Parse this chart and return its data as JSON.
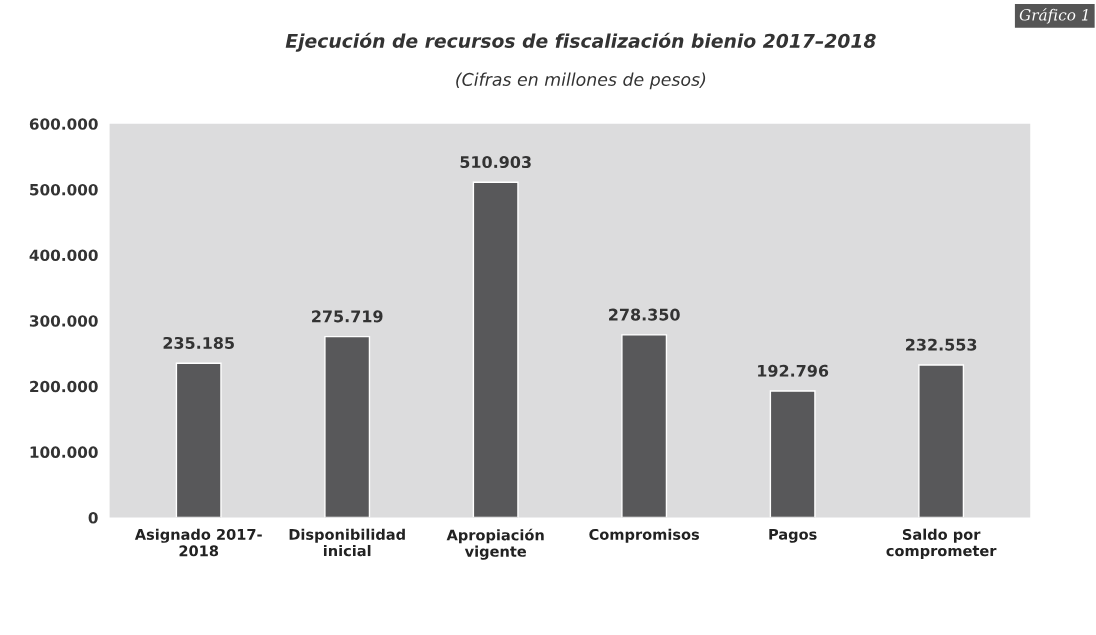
{
  "chart_data": {
    "type": "bar",
    "title": "Ejecución de recursos de fiscalización bienio 2017–2018",
    "subtitle": "(Cifras en millones de pesos)",
    "annotations": [
      "Gráfico 1"
    ],
    "categories": [
      "Asignado 2017-\n2018",
      "Disponibilidad\ninicial",
      "Apropiación\nvigente",
      "Compromisos",
      "Pagos",
      "Saldo por\ncomprometer"
    ],
    "values": [
      235185,
      275719,
      510903,
      278350,
      192796,
      232553
    ],
    "value_labels": [
      "235.185",
      "275.719",
      "510.903",
      "278.350",
      "192.796",
      "232.553"
    ],
    "color": "#58585a",
    "ylim": [
      0,
      600000
    ],
    "yticks": [
      {
        "value": 0,
        "label": "0"
      },
      {
        "value": 100000,
        "label": "100.000"
      },
      {
        "value": 200000,
        "label": "200.000"
      },
      {
        "value": 300000,
        "label": "300.000"
      },
      {
        "value": 400000,
        "label": "400.000"
      },
      {
        "value": 500000,
        "label": "500.000"
      },
      {
        "value": 600000,
        "label": "600.000"
      }
    ],
    "grid": false,
    "legend": false
  }
}
